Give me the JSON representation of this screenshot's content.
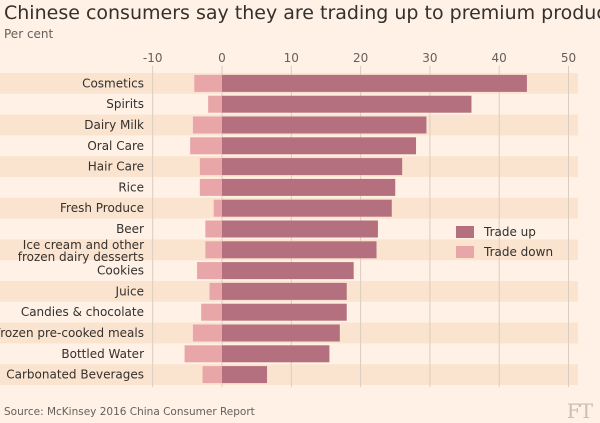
{
  "title": "Chinese consumers say they are trading up to premium products",
  "subtitle": "Per cent",
  "source": "Source: McKinsey 2016 China Consumer Report",
  "logo": "FT",
  "colors": {
    "trade_up": "#b5707f",
    "trade_down": "#e9a6a8",
    "band": "#fbe4cf",
    "grid": "#d9cdbf"
  },
  "legend": {
    "trade_up": "Trade up",
    "trade_down": "Trade down"
  },
  "chart_data": {
    "type": "bar",
    "orientation": "horizontal",
    "xlim": [
      -10,
      50
    ],
    "xticks": [
      -10,
      0,
      10,
      20,
      30,
      40,
      50
    ],
    "grid": true,
    "legend_position": "right",
    "categories": [
      "Cosmetics",
      "Spirits",
      "Dairy Milk",
      "Oral Care",
      "Hair Care",
      "Rice",
      "Fresh Produce",
      "Beer",
      "Ice cream and other frozen dairy desserts",
      "Cookies",
      "Juice",
      "Candies & chocolate",
      "Frozen pre-cooked meals",
      "Bottled Water",
      "Carbonated Beverages"
    ],
    "series": [
      {
        "name": "Trade up",
        "values": [
          44,
          36,
          29.5,
          28,
          26,
          25,
          24.5,
          22.5,
          22.3,
          19,
          18,
          18,
          17,
          15.5,
          6.5
        ]
      },
      {
        "name": "Trade down",
        "values": [
          -4,
          -2,
          -4.2,
          -4.6,
          -3.2,
          -3.2,
          -1.2,
          -2.4,
          -2.4,
          -3.6,
          -1.8,
          -3,
          -4.2,
          -5.4,
          -2.8
        ]
      }
    ]
  }
}
